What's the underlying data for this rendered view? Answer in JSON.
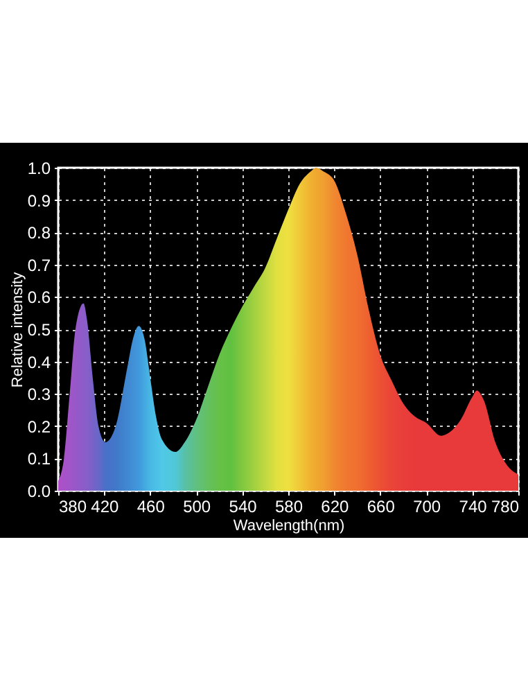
{
  "chart_data": {
    "type": "area",
    "xlabel": "Wavelength(nm)",
    "ylabel": "Relative intensity",
    "x": [
      380,
      385,
      390,
      395,
      402,
      405,
      410,
      415,
      421,
      430,
      440,
      445,
      450,
      455,
      460,
      465,
      470,
      482,
      490,
      500,
      510,
      520,
      530,
      540,
      550,
      560,
      570,
      580,
      590,
      600,
      604,
      610,
      620,
      630,
      640,
      650,
      660,
      670,
      680,
      690,
      700,
      713,
      720,
      730,
      740,
      744,
      750,
      760,
      770,
      780
    ],
    "series": [
      {
        "colors": [
          "#b050c8",
          "#a852c8",
          "#a055c8",
          "#9858c8",
          "#8c5cc8",
          "#885ec8",
          "#7862c8",
          "#6868c8",
          "#4a70c8",
          "#4078c8",
          "#4088d0",
          "#4090d8",
          "#4098dc",
          "#44a8e0",
          "#48b8e4",
          "#4cc0e8",
          "#50c8e8",
          "#50c8d8",
          "#58c0a8",
          "#60c080",
          "#64c060",
          "#66c048",
          "#60c040",
          "#80c840",
          "#a0d040",
          "#c0d840",
          "#e0e040",
          "#f0e040",
          "#f0c838",
          "#f0b030",
          "#f0a830",
          "#f0a030",
          "#f08830",
          "#f07830",
          "#f07030",
          "#ee6030",
          "#ec5034",
          "#ea4438",
          "#e83e3a",
          "#e83a3a",
          "#e83a3a",
          "#e83a3a",
          "#e83a3a",
          "#e83a3a",
          "#e83a3a",
          "#e83a3a",
          "#e83a3a",
          "#e83a3a",
          "#e83a3a",
          "#e83a3a"
        ],
        "values": [
          0.03,
          0.1,
          0.3,
          0.5,
          0.58,
          0.53,
          0.35,
          0.2,
          0.15,
          0.2,
          0.38,
          0.47,
          0.51,
          0.47,
          0.35,
          0.23,
          0.16,
          0.12,
          0.15,
          0.22,
          0.32,
          0.42,
          0.5,
          0.57,
          0.63,
          0.69,
          0.78,
          0.87,
          0.95,
          0.99,
          1.0,
          0.99,
          0.96,
          0.86,
          0.73,
          0.56,
          0.42,
          0.34,
          0.27,
          0.23,
          0.21,
          0.17,
          0.18,
          0.22,
          0.29,
          0.31,
          0.28,
          0.15,
          0.08,
          0.05
        ]
      }
    ],
    "xlim": [
      380,
      780
    ],
    "xticks": [
      380,
      420,
      460,
      500,
      540,
      580,
      620,
      660,
      700,
      740,
      780
    ],
    "ylim": [
      0,
      1
    ],
    "yticks": [
      {
        "value": 0,
        "label": "0.0"
      },
      0.1,
      0.2,
      0.3,
      0.4,
      0.5,
      0.6,
      0.7,
      0.8,
      0.9,
      {
        "value": 1,
        "label": "1.0"
      }
    ],
    "grid": true
  }
}
